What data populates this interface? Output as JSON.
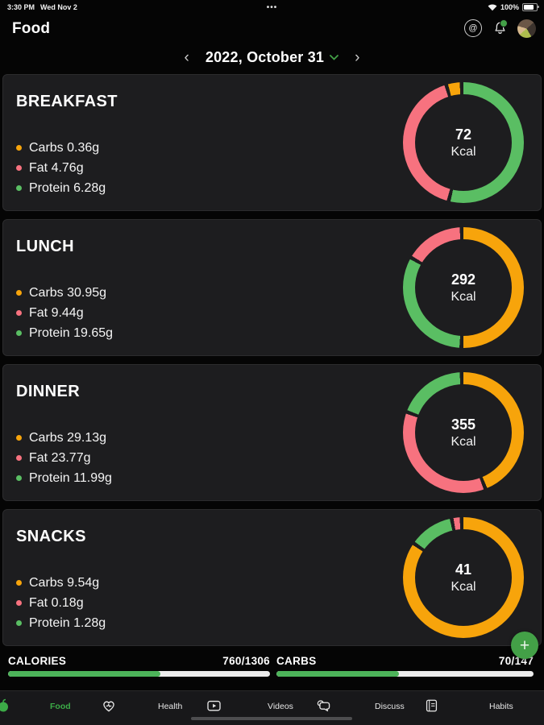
{
  "status_bar": {
    "time": "3:30 PM",
    "date": "Wed Nov 2",
    "menu_dots": "•••",
    "battery": "100%"
  },
  "header": {
    "title": "Food"
  },
  "date_nav": {
    "prev": "‹",
    "label": "2022, October 31",
    "next": "›"
  },
  "colors": {
    "orange": "#f7a40b",
    "pink": "#f7727f",
    "green": "#5abe63",
    "accent_green": "#43a047"
  },
  "meals": [
    {
      "name": "BREAKFAST",
      "kcal": "72",
      "kcal_unit": "Kcal",
      "macros": [
        {
          "label": "Carbs",
          "value": "0.36g",
          "color": "#f7a40b"
        },
        {
          "label": "Fat",
          "value": "4.76g",
          "color": "#f7727f"
        },
        {
          "label": "Protein",
          "value": "6.28g",
          "color": "#5abe63"
        }
      ],
      "segments": [
        {
          "color": "#5abe63",
          "pct": 55.1
        },
        {
          "color": "#f7727f",
          "pct": 41.7
        },
        {
          "color": "#f7a40b",
          "pct": 3.2
        }
      ]
    },
    {
      "name": "LUNCH",
      "kcal": "292",
      "kcal_unit": "Kcal",
      "macros": [
        {
          "label": "Carbs",
          "value": "30.95g",
          "color": "#f7a40b"
        },
        {
          "label": "Fat",
          "value": "9.44g",
          "color": "#f7727f"
        },
        {
          "label": "Protein",
          "value": "19.65g",
          "color": "#5abe63"
        }
      ],
      "segments": [
        {
          "color": "#f7a40b",
          "pct": 51.6
        },
        {
          "color": "#5abe63",
          "pct": 32.7
        },
        {
          "color": "#f7727f",
          "pct": 15.7
        }
      ]
    },
    {
      "name": "DINNER",
      "kcal": "355",
      "kcal_unit": "Kcal",
      "macros": [
        {
          "label": "Carbs",
          "value": "29.13g",
          "color": "#f7a40b"
        },
        {
          "label": "Fat",
          "value": "23.77g",
          "color": "#f7727f"
        },
        {
          "label": "Protein",
          "value": "11.99g",
          "color": "#5abe63"
        }
      ],
      "segments": [
        {
          "color": "#f7a40b",
          "pct": 44.9
        },
        {
          "color": "#f7727f",
          "pct": 36.6
        },
        {
          "color": "#5abe63",
          "pct": 18.5
        }
      ]
    },
    {
      "name": "SNACKS",
      "kcal": "41",
      "kcal_unit": "Kcal",
      "macros": [
        {
          "label": "Carbs",
          "value": "9.54g",
          "color": "#f7a40b"
        },
        {
          "label": "Fat",
          "value": "0.18g",
          "color": "#f7727f"
        },
        {
          "label": "Protein",
          "value": "1.28g",
          "color": "#5abe63"
        }
      ],
      "segments": [
        {
          "color": "#f7a40b",
          "pct": 86.7
        },
        {
          "color": "#5abe63",
          "pct": 11.6
        },
        {
          "color": "#f7727f",
          "pct": 1.7
        }
      ]
    }
  ],
  "summary": [
    {
      "label": "CALORIES",
      "value": "760/1306",
      "pct": 58.2
    },
    {
      "label": "CARBS",
      "value": "70/147",
      "pct": 47.6
    }
  ],
  "fab": {
    "label": "+"
  },
  "nav": {
    "items": [
      {
        "icon": "food-icon",
        "label": "Food",
        "active": true
      },
      {
        "icon": "heart-icon",
        "label": "Health",
        "active": false
      },
      {
        "icon": "video-icon",
        "label": "Videos",
        "active": false
      },
      {
        "icon": "chat-icon",
        "label": "Discuss",
        "active": false
      },
      {
        "icon": "journal-icon",
        "label": "Habits",
        "active": false
      }
    ]
  }
}
